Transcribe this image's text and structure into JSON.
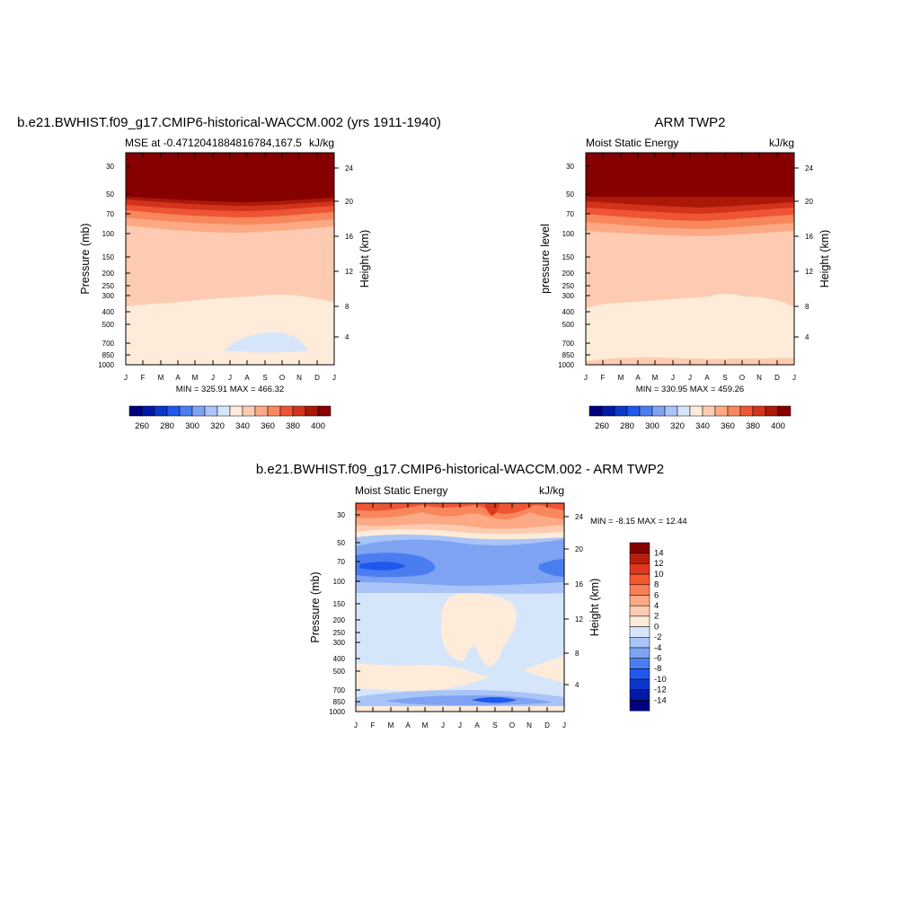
{
  "chart_data": [
    {
      "type": "heatmap",
      "id": "model",
      "title": "b.e21.BWHIST.f09_g17.CMIP6-historical-WACCM.002 (yrs 1911-1940)",
      "left_subtitle": "MSE at -0.4712041884816784,167.5",
      "right_subtitle": "kJ/kg",
      "ylabel": "Pressure (mb)",
      "ylabel_right": "Height (km)",
      "x_ticks": [
        "J",
        "F",
        "M",
        "A",
        "M",
        "J",
        "J",
        "A",
        "S",
        "O",
        "N",
        "D",
        "J"
      ],
      "y_ticks_pressure": [
        "30",
        "50",
        "70",
        "100",
        "150",
        "200",
        "250",
        "300",
        "400",
        "500",
        "700",
        "850",
        "1000"
      ],
      "y_ticks_height_km": [
        "24",
        "20",
        "16",
        "12",
        "8",
        "4"
      ],
      "min_max_text": "MIN = 325.91  MAX = 466.32",
      "colorbar": {
        "orientation": "horizontal",
        "levels": [
          260,
          270,
          280,
          290,
          300,
          310,
          320,
          330,
          340,
          350,
          360,
          370,
          380,
          390,
          400
        ],
        "labels": [
          "260",
          "280",
          "300",
          "320",
          "340",
          "360",
          "380",
          "400"
        ],
        "colors": [
          "#00007f",
          "#0019a5",
          "#0b37cc",
          "#1f58ec",
          "#4a7df0",
          "#7ea3f3",
          "#a9c4f7",
          "#d5e6fb",
          "#feebda",
          "#fdcbb1",
          "#fca985",
          "#f9875c",
          "#ee5535",
          "#d3331b",
          "#ac1808",
          "#870000"
        ]
      },
      "contour_bands_top_to_bottom": [
        {
          "level_range": ">400",
          "pressure_bottom_mb": "50"
        },
        {
          "level_range": "390-400",
          "pressure_bottom_mb": "58"
        },
        {
          "level_range": "380-390",
          "pressure_bottom_mb": "65"
        },
        {
          "level_range": "370-380",
          "pressure_bottom_mb": "72"
        },
        {
          "level_range": "360-370",
          "pressure_bottom_mb": "82"
        },
        {
          "level_range": "350-360",
          "pressure_bottom_mb": "100"
        },
        {
          "level_range": "340-350",
          "pressure_bottom_mb": "125"
        },
        {
          "level_range": "330-340",
          "pressure_bottom_mb": "320"
        },
        {
          "level_range": "320-330",
          "pressure_bottom_mb": "1000"
        }
      ]
    },
    {
      "type": "heatmap",
      "id": "obs",
      "title": "ARM TWP2",
      "left_subtitle": "Moist Static Energy",
      "right_subtitle": "kJ/kg",
      "ylabel": "pressure level",
      "ylabel_right": "Height (km)",
      "x_ticks": [
        "J",
        "F",
        "M",
        "A",
        "M",
        "J",
        "J",
        "A",
        "S",
        "O",
        "N",
        "D",
        "J"
      ],
      "y_ticks_pressure": [
        "30",
        "50",
        "70",
        "100",
        "150",
        "200",
        "250",
        "300",
        "400",
        "500",
        "700",
        "850",
        "1000"
      ],
      "y_ticks_height_km": [
        "24",
        "20",
        "16",
        "12",
        "8",
        "4"
      ],
      "min_max_text": "MIN = 330.95  MAX = 459.26",
      "colorbar": {
        "orientation": "horizontal",
        "levels": [
          260,
          270,
          280,
          290,
          300,
          310,
          320,
          330,
          340,
          350,
          360,
          370,
          380,
          390,
          400
        ],
        "labels": [
          "260",
          "280",
          "300",
          "320",
          "340",
          "360",
          "380",
          "400"
        ],
        "colors": [
          "#00007f",
          "#0019a5",
          "#0b37cc",
          "#1f58ec",
          "#4a7df0",
          "#7ea3f3",
          "#a9c4f7",
          "#d5e6fb",
          "#feebda",
          "#fdcbb1",
          "#fca985",
          "#f9875c",
          "#ee5535",
          "#d3331b",
          "#ac1808",
          "#870000"
        ]
      }
    },
    {
      "type": "heatmap",
      "id": "diff",
      "title": "b.e21.BWHIST.f09_g17.CMIP6-historical-WACCM.002 - ARM TWP2",
      "left_subtitle": "Moist Static Energy",
      "right_subtitle": "kJ/kg",
      "ylabel": "Pressure (mb)",
      "ylabel_right": "Height (km)",
      "x_ticks": [
        "J",
        "F",
        "M",
        "A",
        "M",
        "J",
        "J",
        "A",
        "S",
        "O",
        "N",
        "D",
        "J"
      ],
      "y_ticks_pressure": [
        "30",
        "50",
        "70",
        "100",
        "150",
        "200",
        "250",
        "300",
        "400",
        "500",
        "700",
        "850",
        "1000"
      ],
      "y_ticks_height_km": [
        "24",
        "20",
        "16",
        "12",
        "8",
        "4"
      ],
      "min_max_text": "MIN =  -8.15  MAX =  12.44",
      "colorbar": {
        "orientation": "vertical",
        "levels": [
          14,
          12,
          10,
          8,
          6,
          4,
          2,
          0,
          -2,
          -4,
          -6,
          -8,
          -10,
          -12,
          -14
        ],
        "labels": [
          "14",
          "12",
          "10",
          "8",
          "6",
          "4",
          "2",
          "0",
          "-2",
          "-4",
          "-6",
          "-8",
          "-10",
          "-12",
          "-14"
        ],
        "colors": [
          "#870000",
          "#b4200b",
          "#de3920",
          "#f4592f",
          "#fb7f55",
          "#fca985",
          "#fdcbb1",
          "#feebda",
          "#d5e6fb",
          "#a9c4f7",
          "#7ea3f3",
          "#4a7df0",
          "#1f58ec",
          "#0b37cc",
          "#0019a5",
          "#00007f"
        ]
      }
    }
  ]
}
